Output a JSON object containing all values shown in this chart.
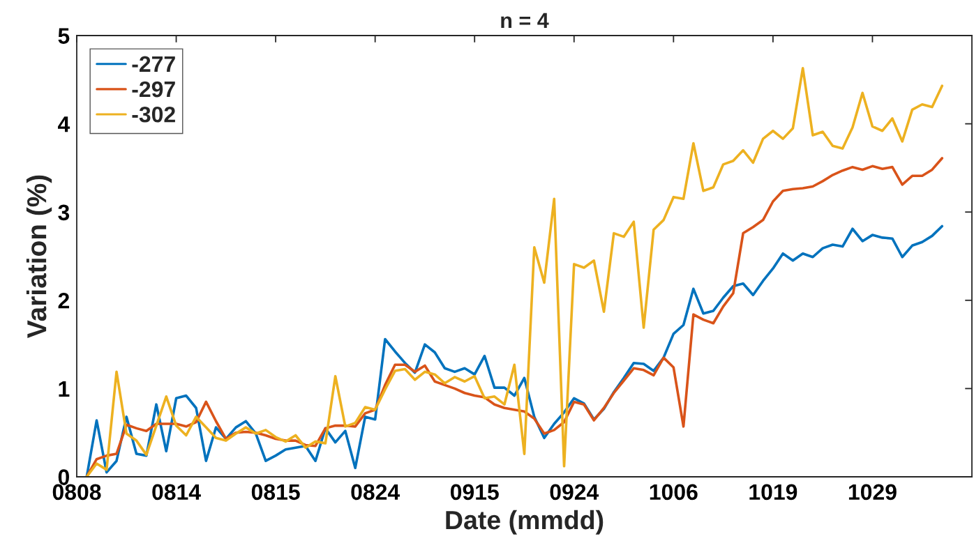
{
  "chart_data": {
    "type": "line",
    "title": "n = 4",
    "xlabel": "Date (mmdd)",
    "ylabel": "Variation (%)",
    "categories": [
      "0808",
      null,
      null,
      null,
      null,
      null,
      null,
      null,
      null,
      null,
      "0814",
      null,
      null,
      null,
      null,
      null,
      null,
      null,
      null,
      null,
      "0815",
      null,
      null,
      null,
      null,
      null,
      null,
      null,
      null,
      null,
      "0824",
      null,
      null,
      null,
      null,
      null,
      null,
      null,
      null,
      null,
      "0915",
      null,
      null,
      null,
      null,
      null,
      null,
      null,
      null,
      null,
      "0924",
      null,
      null,
      null,
      null,
      null,
      null,
      null,
      null,
      null,
      "1006",
      null,
      null,
      null,
      null,
      null,
      null,
      null,
      null,
      null,
      "1019",
      null,
      null,
      null,
      null,
      null,
      null,
      null,
      null,
      null,
      "1029",
      null,
      null,
      null,
      null,
      null,
      null,
      null,
      null,
      null,
      null
    ],
    "ylim": [
      0,
      5
    ],
    "yticks": [
      0,
      1,
      2,
      3,
      4,
      5
    ],
    "legend": "top left",
    "series": [
      {
        "name": "-277",
        "color": "#0072bd",
        "values": [
          null,
          0,
          0.64,
          0.05,
          0.18,
          0.68,
          0.26,
          0.24,
          0.82,
          0.29,
          0.89,
          0.92,
          0.78,
          0.18,
          0.56,
          0.43,
          0.56,
          0.63,
          0.49,
          0.18,
          0.24,
          0.31,
          0.33,
          0.35,
          0.18,
          0.55,
          0.39,
          0.52,
          0.1,
          0.68,
          0.65,
          1.56,
          1.42,
          1.29,
          1.18,
          1.5,
          1.41,
          1.23,
          1.19,
          1.23,
          1.16,
          1.37,
          1.01,
          1.01,
          0.92,
          1.12,
          0.68,
          0.44,
          0.6,
          0.73,
          0.89,
          0.83,
          0.65,
          0.77,
          0.96,
          1.12,
          1.29,
          1.28,
          1.2,
          1.35,
          1.62,
          1.72,
          2.13,
          1.85,
          1.88,
          2.03,
          2.16,
          2.19,
          2.06,
          2.22,
          2.36,
          2.53,
          2.45,
          2.53,
          2.49,
          2.59,
          2.63,
          2.61,
          2.81,
          2.67,
          2.74,
          2.71,
          2.7,
          2.49,
          2.62,
          2.66,
          2.73,
          2.84,
          null,
          null,
          null
        ]
      },
      {
        "name": "-297",
        "color": "#d95319",
        "values": [
          null,
          0,
          0.2,
          0.24,
          0.26,
          0.59,
          0.55,
          0.52,
          0.6,
          0.6,
          0.6,
          0.57,
          0.62,
          0.85,
          0.63,
          0.43,
          0.5,
          0.51,
          0.5,
          0.47,
          0.43,
          0.41,
          0.41,
          0.36,
          0.35,
          0.55,
          0.58,
          0.58,
          0.57,
          0.72,
          0.76,
          1.04,
          1.27,
          1.27,
          1.19,
          1.26,
          1.08,
          1.04,
          1.0,
          0.95,
          0.92,
          0.9,
          0.82,
          0.78,
          0.76,
          0.74,
          0.66,
          0.49,
          0.53,
          0.62,
          0.85,
          0.82,
          0.64,
          0.78,
          0.95,
          1.09,
          1.23,
          1.21,
          1.15,
          1.35,
          1.24,
          0.57,
          1.84,
          1.78,
          1.74,
          1.93,
          2.08,
          2.76,
          2.83,
          2.91,
          3.12,
          3.24,
          3.26,
          3.27,
          3.29,
          3.35,
          3.42,
          3.47,
          3.51,
          3.48,
          3.52,
          3.49,
          3.51,
          3.31,
          3.41,
          3.41,
          3.48,
          3.61,
          null,
          null,
          null
        ]
      },
      {
        "name": "-302",
        "color": "#edb120",
        "values": [
          null,
          0,
          0.15,
          0.08,
          1.19,
          0.49,
          0.41,
          0.25,
          0.58,
          0.91,
          0.58,
          0.47,
          0.68,
          0.56,
          0.44,
          0.41,
          0.49,
          0.56,
          0.49,
          0.53,
          0.45,
          0.4,
          0.47,
          0.33,
          0.4,
          0.38,
          1.14,
          0.57,
          0.61,
          0.79,
          0.76,
          0.99,
          1.2,
          1.22,
          1.1,
          1.19,
          1.16,
          1.06,
          1.13,
          1.08,
          1.14,
          0.89,
          0.91,
          0.82,
          1.27,
          0.26,
          2.6,
          2.2,
          3.15,
          0.12,
          2.41,
          2.37,
          2.45,
          1.87,
          2.76,
          2.72,
          2.89,
          1.69,
          2.8,
          2.91,
          3.17,
          3.15,
          3.78,
          3.24,
          3.28,
          3.54,
          3.58,
          3.7,
          3.56,
          3.83,
          3.92,
          3.83,
          3.95,
          4.63,
          3.87,
          3.91,
          3.75,
          3.72,
          3.96,
          4.35,
          3.97,
          3.92,
          4.06,
          3.8,
          4.16,
          4.22,
          4.19,
          4.43,
          null,
          null,
          null
        ]
      }
    ]
  }
}
